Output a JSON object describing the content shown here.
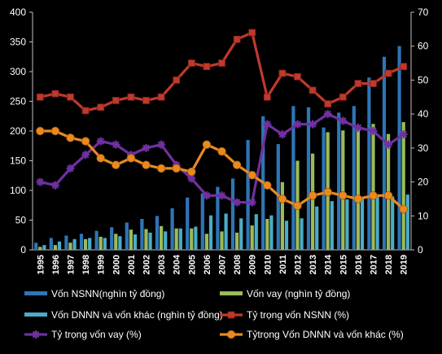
{
  "chart_data": {
    "type": "bar",
    "categories": [
      "1995",
      "1996",
      "1997",
      "1998",
      "1999",
      "2000",
      "2001",
      "2002",
      "2003",
      "2004",
      "2005",
      "2006",
      "2007",
      "2008",
      "2009",
      "2010",
      "2011",
      "2012",
      "2013",
      "2014",
      "2015",
      "2016",
      "2017",
      "2018",
      "2019"
    ],
    "y_left": {
      "min": 0,
      "max": 400,
      "ticks": [
        "0",
        "50",
        "100",
        "150",
        "200",
        "250",
        "300",
        "350",
        "400"
      ]
    },
    "y_right": {
      "min": 0,
      "max": 70,
      "ticks": [
        "0",
        "10",
        "20",
        "30",
        "40",
        "50",
        "60",
        "70"
      ]
    },
    "grid": false,
    "legend_position": "bottom",
    "series": [
      {
        "name": "Vốn NSNN(nghìn tỷ đồng)",
        "kind": "bar",
        "axis": "left",
        "color": "#2e75b6",
        "values": [
          12,
          20,
          24,
          27,
          32,
          38,
          46,
          52,
          57,
          70,
          88,
          95,
          106,
          120,
          185,
          225,
          178,
          242,
          240,
          206,
          231,
          242,
          290,
          325,
          343
        ]
      },
      {
        "name": "Vốn vay (nghìn tỷ đồng)",
        "kind": "bar",
        "axis": "left",
        "color": "#9bbb59",
        "values": [
          5,
          8,
          12,
          18,
          22,
          27,
          34,
          35,
          40,
          36,
          36,
          27,
          31,
          29,
          41,
          52,
          114,
          150,
          162,
          198,
          201,
          205,
          212,
          195,
          215
        ]
      },
      {
        "name": "Vốn DNNN và vốn khác (nghìn tỷ đồng)",
        "kind": "bar",
        "axis": "left",
        "color": "#4bacc6",
        "values": [
          8,
          14,
          18,
          20,
          20,
          23,
          26,
          29,
          31,
          36,
          39,
          58,
          61,
          53,
          60,
          58,
          49,
          53,
          73,
          82,
          85,
          87,
          90,
          90,
          93
        ]
      },
      {
        "name": "Tỷ trọng vốn NSNN (%)",
        "kind": "line",
        "axis": "right",
        "color": "#c0392b",
        "marker": "square",
        "values": [
          45,
          46,
          45,
          41,
          42,
          44,
          45,
          44,
          45,
          50,
          55,
          54,
          55,
          62,
          64,
          45,
          52,
          51,
          47,
          43,
          45,
          49,
          49,
          52,
          54
        ]
      },
      {
        "name": "Tỷ trọng vốn vay (%)",
        "kind": "line",
        "axis": "right",
        "color": "#7030a0",
        "marker": "star",
        "values": [
          20,
          19,
          24,
          28,
          32,
          31,
          28,
          30,
          31,
          25,
          21,
          16,
          16,
          14,
          14,
          37,
          34,
          37,
          37,
          40,
          38,
          36,
          35,
          31,
          34
        ]
      },
      {
        "name": "Tỷtrọng Vốn DNNN và vốn khác (%)",
        "kind": "line",
        "axis": "right",
        "color": "#e98a1f",
        "marker": "circle",
        "values": [
          35,
          35,
          33,
          32,
          27,
          25,
          27,
          25,
          24,
          24,
          23,
          31,
          29,
          25,
          22,
          19,
          15,
          13,
          16,
          17,
          16,
          15,
          16,
          16,
          12
        ]
      }
    ]
  }
}
